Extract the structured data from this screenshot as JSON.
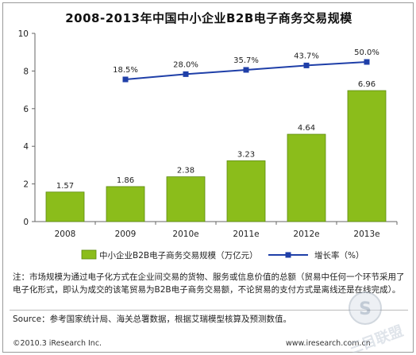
{
  "chart_data": {
    "type": "bar",
    "title": "2008-2013年中国中小企业B2B电子商务交易规模",
    "categories": [
      "2008",
      "2009",
      "2010e",
      "2011e",
      "2012e",
      "2013e"
    ],
    "series": [
      {
        "name": "中小企业B2B电子商务交易规模（万亿元）",
        "type": "bar",
        "values": [
          1.57,
          1.86,
          2.38,
          3.23,
          4.64,
          6.96
        ],
        "labels": [
          "1.57",
          "1.86",
          "2.38",
          "3.23",
          "4.64",
          "6.96"
        ]
      },
      {
        "name": "增长率（%）",
        "type": "line",
        "values": [
          null,
          18.5,
          28.0,
          35.7,
          43.7,
          50.0
        ],
        "labels": [
          "",
          "18.5%",
          "28.0%",
          "35.7%",
          "43.7%",
          "50.0%"
        ]
      }
    ],
    "ylim": [
      0,
      10
    ],
    "yticks": [
      "0",
      "2",
      "4",
      "6",
      "8",
      "10"
    ],
    "ylabel": "",
    "xlabel": "",
    "grid": false,
    "legend": "bottom",
    "colors": {
      "bar": "#8bbd1b",
      "bar_dark": "#5c8a0e",
      "line": "#1f3fa8"
    }
  },
  "footer": {
    "note": "注：市场规模为通过电子化方式在企业间交易的货物、服务或信息价值的总额（贸易中任何一个环节采用了电子化形式，即认为成交的该笔贸易为B2B电子商务交易额，不论贸易的支付方式是离线还是在线完成）。",
    "source": "Source：参考国家统计局、海关总署数据，根据艾瑞模型核算及预测数值。",
    "copyright": "©2010.3 iResearch Inc.",
    "website": "www.iresearch.com.cn"
  },
  "watermark": {
    "text": "三目联盟",
    "icon": "s-logo-badge-icon"
  }
}
